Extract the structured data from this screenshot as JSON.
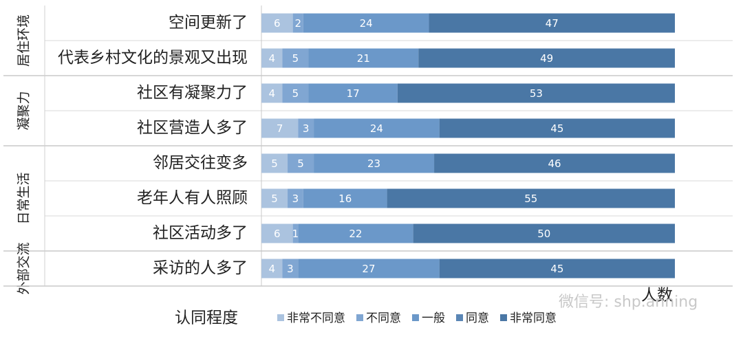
{
  "chart_data": {
    "type": "stacked-bar-horizontal",
    "categories": [
      "空间更新了",
      "代表乡村文化的景观又出现",
      "社区有凝聚力了",
      "社区营造人多了",
      "邻居交往变多",
      "老年人有人照顾",
      "社区活动多了",
      "采访的人多了"
    ],
    "groups": [
      {
        "name": "居住环境",
        "size": 2
      },
      {
        "name": "凝聚力",
        "size": 2
      },
      {
        "name": "日常生活",
        "size": 3
      },
      {
        "name": "外部交流",
        "size": 1
      }
    ],
    "series": [
      {
        "name": "非常不同意",
        "color": "#abc3df",
        "values": [
          6,
          4,
          4,
          7,
          5,
          5,
          6,
          4
        ]
      },
      {
        "name": "不同意",
        "color": "#80a6d2",
        "values": [
          2,
          5,
          5,
          3,
          5,
          3,
          1,
          3
        ]
      },
      {
        "name": "一般",
        "color": "#6b98c9",
        "values": [
          24,
          21,
          17,
          24,
          23,
          16,
          22,
          27
        ]
      },
      {
        "name": "同意",
        "color": "#5a86b5",
        "values": [
          null,
          null,
          null,
          null,
          null,
          null,
          null,
          null
        ]
      },
      {
        "name": "非常同意",
        "color": "#4a77a5",
        "values": [
          47,
          49,
          53,
          45,
          46,
          55,
          50,
          45
        ]
      }
    ],
    "xlim": [
      0,
      79
    ],
    "x_label": "人数",
    "legend_title": "认同程度"
  },
  "watermark": "微信号: shp.anning"
}
